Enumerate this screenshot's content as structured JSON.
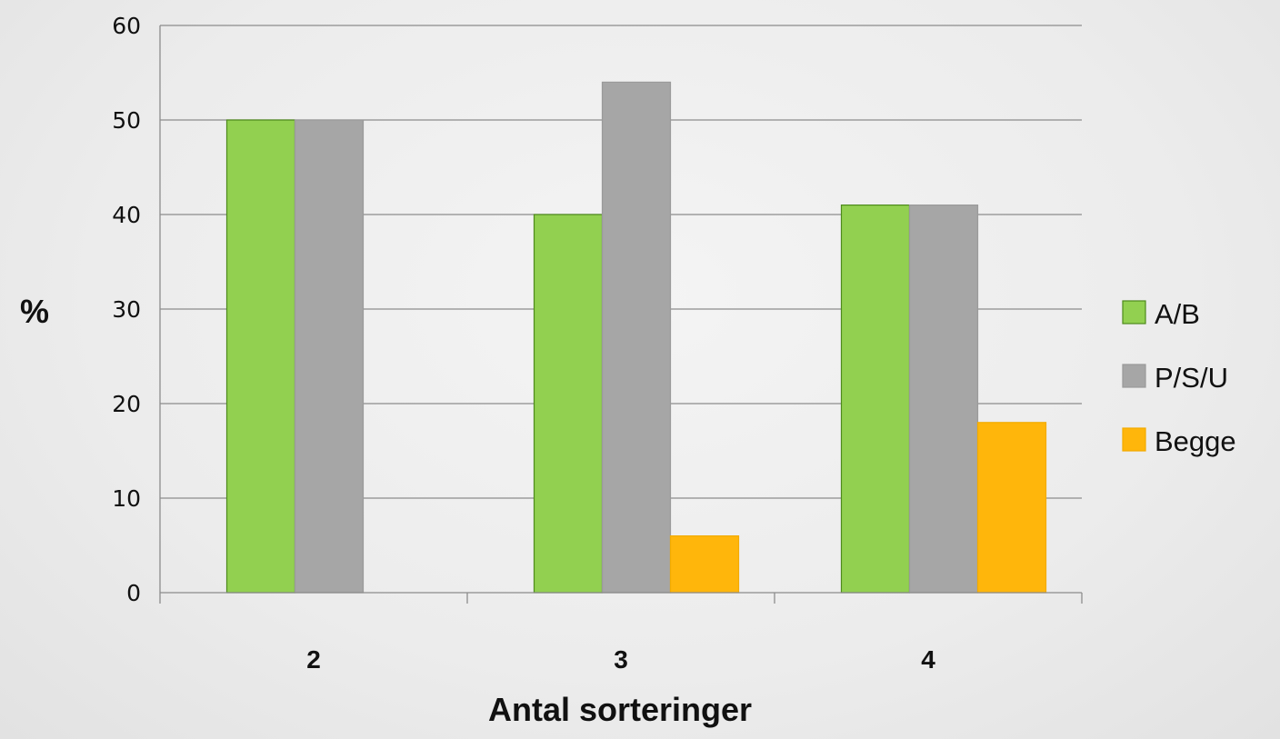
{
  "chart_data": {
    "type": "bar",
    "categories": [
      "2",
      "3",
      "4"
    ],
    "series": [
      {
        "name": "A/B",
        "values": [
          50,
          40,
          41
        ],
        "color": "#92d050",
        "stroke": "#4e8a1c"
      },
      {
        "name": "P/S/U",
        "values": [
          50,
          54,
          41
        ],
        "color": "#a6a6a6",
        "stroke": "#9a9a9a"
      },
      {
        "name": "Begge",
        "values": [
          0,
          6,
          18
        ],
        "color": "#ffb60b",
        "stroke": "#f2ab00"
      }
    ],
    "xlabel": "Antal sorteringer",
    "ylabel": "%",
    "ylim": [
      0,
      60
    ],
    "yticks": [
      "0",
      "10",
      "20",
      "30",
      "40",
      "50",
      "60"
    ],
    "grid": true,
    "legend_position": "right"
  }
}
